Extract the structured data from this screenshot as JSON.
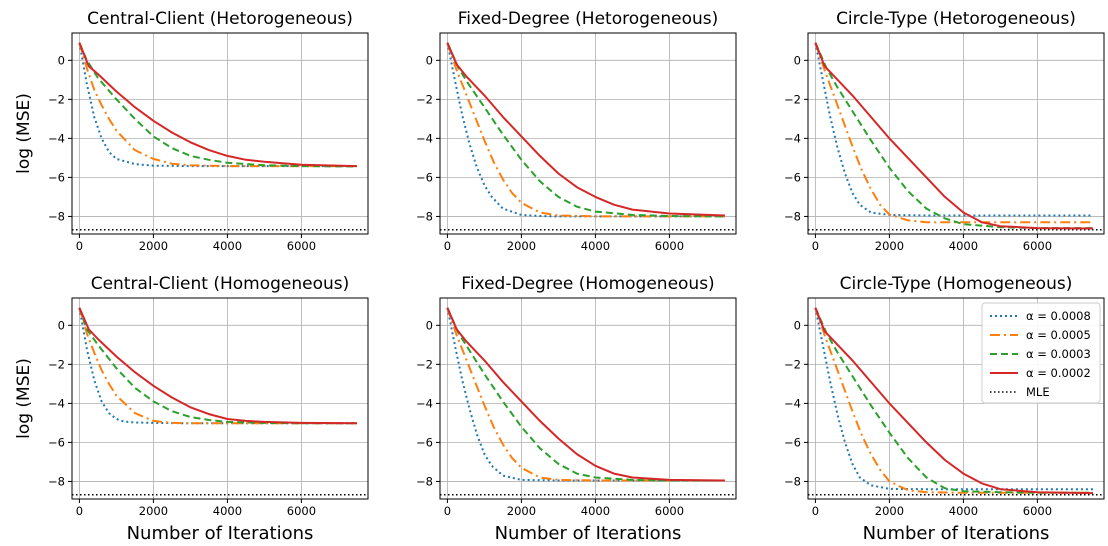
{
  "colors": {
    "series": [
      "#1f77b4",
      "#ff7f0e",
      "#2ca02c",
      "#d62728"
    ],
    "mle": "#000000",
    "grid": "#b0b0b0",
    "axis": "#000000"
  },
  "figure": {
    "ylabel": "log (MSE)",
    "xlabel": "Number of Iterations"
  },
  "legend": {
    "placement": "upper-right of bottom-right panel",
    "entries": [
      {
        "label": "α = 0.0008",
        "style": "dotted"
      },
      {
        "label": "α = 0.0005",
        "style": "dashdot"
      },
      {
        "label": "α = 0.0003",
        "style": "dashed"
      },
      {
        "label": "α = 0.0002",
        "style": "solid"
      },
      {
        "label": "MLE",
        "style": "dotted"
      }
    ]
  },
  "chart_data": [
    {
      "type": "line",
      "title": "Central-Client (Hetorogeneous)",
      "xlabel": "",
      "ylabel": "log (MSE)",
      "xlim": [
        -200,
        7800
      ],
      "ylim": [
        -8.9,
        1.4
      ],
      "xticks": [
        0,
        2000,
        4000,
        6000
      ],
      "yticks": [
        0,
        -2,
        -4,
        -6,
        -8
      ],
      "grid": true,
      "mle": -8.68,
      "series": [
        {
          "name": "α = 0.0008",
          "x": [
            0,
            200,
            400,
            600,
            800,
            1000,
            1500,
            2000,
            3000,
            4000,
            5000,
            6000,
            7500
          ],
          "y": [
            0.9,
            -1.2,
            -2.9,
            -4.0,
            -4.7,
            -5.05,
            -5.32,
            -5.4,
            -5.42,
            -5.42,
            -5.42,
            -5.42,
            -5.42
          ]
        },
        {
          "name": "α = 0.0005",
          "x": [
            0,
            200,
            400,
            600,
            800,
            1000,
            1500,
            2000,
            2500,
            3000,
            4000,
            5000,
            6000,
            7500
          ],
          "y": [
            0.9,
            -0.4,
            -1.5,
            -2.3,
            -3.0,
            -3.6,
            -4.6,
            -5.05,
            -5.3,
            -5.38,
            -5.42,
            -5.42,
            -5.42,
            -5.42
          ]
        },
        {
          "name": "α = 0.0003",
          "x": [
            0,
            200,
            500,
            1000,
            1500,
            2000,
            2500,
            3000,
            3500,
            4000,
            5000,
            6000,
            7500
          ],
          "y": [
            0.9,
            0.0,
            -0.9,
            -2.0,
            -3.0,
            -3.9,
            -4.5,
            -4.9,
            -5.1,
            -5.25,
            -5.38,
            -5.42,
            -5.44
          ]
        },
        {
          "name": "α = 0.0002",
          "x": [
            0,
            250,
            500,
            1000,
            1500,
            2000,
            2500,
            3000,
            3500,
            4000,
            4500,
            5000,
            6000,
            7500
          ],
          "y": [
            0.9,
            -0.3,
            -0.7,
            -1.6,
            -2.4,
            -3.1,
            -3.7,
            -4.2,
            -4.6,
            -4.9,
            -5.1,
            -5.2,
            -5.35,
            -5.42
          ]
        }
      ]
    },
    {
      "type": "line",
      "title": "Fixed-Degree (Hetorogeneous)",
      "xlabel": "",
      "ylabel": "",
      "xlim": [
        -200,
        7800
      ],
      "ylim": [
        -8.9,
        1.4
      ],
      "xticks": [
        0,
        2000,
        4000,
        6000
      ],
      "yticks": [
        0,
        -2,
        -4,
        -6,
        -8
      ],
      "grid": true,
      "mle": -8.68,
      "series": [
        {
          "name": "α = 0.0008",
          "x": [
            0,
            200,
            400,
            600,
            800,
            1000,
            1200,
            1500,
            2000,
            2500,
            3000,
            4000,
            5000,
            6000,
            7500
          ],
          "y": [
            0.9,
            -1.0,
            -2.8,
            -4.3,
            -5.5,
            -6.4,
            -7.0,
            -7.6,
            -7.92,
            -7.98,
            -8.0,
            -8.0,
            -8.0,
            -8.0,
            -8.0
          ]
        },
        {
          "name": "α = 0.0005",
          "x": [
            0,
            250,
            500,
            750,
            1000,
            1250,
            1500,
            1750,
            2000,
            2500,
            3000,
            4000,
            5000,
            6000,
            7500
          ],
          "y": [
            0.9,
            -0.5,
            -1.7,
            -2.9,
            -4.1,
            -5.2,
            -6.1,
            -6.8,
            -7.3,
            -7.8,
            -7.95,
            -8.0,
            -8.0,
            -8.0,
            -8.0
          ]
        },
        {
          "name": "α = 0.0003",
          "x": [
            0,
            300,
            600,
            1000,
            1500,
            2000,
            2500,
            3000,
            3500,
            4000,
            5000,
            6000,
            7500
          ],
          "y": [
            0.9,
            -0.4,
            -1.3,
            -2.4,
            -3.8,
            -5.1,
            -6.2,
            -7.0,
            -7.5,
            -7.75,
            -7.92,
            -7.98,
            -8.0
          ]
        },
        {
          "name": "α = 0.0002",
          "x": [
            0,
            250,
            500,
            1000,
            1500,
            2000,
            2500,
            3000,
            3500,
            4000,
            4500,
            5000,
            6000,
            7500
          ],
          "y": [
            0.9,
            -0.2,
            -0.8,
            -1.8,
            -2.9,
            -3.9,
            -4.9,
            -5.8,
            -6.5,
            -7.0,
            -7.4,
            -7.65,
            -7.85,
            -7.95
          ]
        }
      ]
    },
    {
      "type": "line",
      "title": "Circle-Type (Hetorogeneous)",
      "xlabel": "",
      "ylabel": "",
      "xlim": [
        -200,
        7800
      ],
      "ylim": [
        -8.9,
        1.4
      ],
      "xticks": [
        0,
        2000,
        4000,
        6000
      ],
      "yticks": [
        0,
        -2,
        -4,
        -6,
        -8
      ],
      "grid": true,
      "mle": -8.68,
      "series": [
        {
          "name": "α = 0.0008",
          "x": [
            0,
            200,
            400,
            600,
            800,
            1000,
            1200,
            1500,
            2000,
            3000,
            4000,
            5000,
            6000,
            7500
          ],
          "y": [
            0.9,
            -1.0,
            -2.9,
            -4.5,
            -5.8,
            -6.8,
            -7.4,
            -7.8,
            -7.92,
            -7.95,
            -7.95,
            -7.95,
            -7.95,
            -7.95
          ]
        },
        {
          "name": "α = 0.0005",
          "x": [
            0,
            250,
            500,
            750,
            1000,
            1250,
            1500,
            1750,
            2000,
            2500,
            3000,
            4000,
            5000,
            6000,
            7500
          ],
          "y": [
            0.9,
            -0.5,
            -1.8,
            -3.1,
            -4.4,
            -5.6,
            -6.6,
            -7.4,
            -7.9,
            -8.2,
            -8.3,
            -8.3,
            -8.3,
            -8.3,
            -8.3
          ]
        },
        {
          "name": "α = 0.0003",
          "x": [
            0,
            300,
            600,
            1000,
            1500,
            2000,
            2500,
            3000,
            3500,
            4000,
            5000,
            6000,
            7500
          ],
          "y": [
            0.9,
            -0.4,
            -1.4,
            -2.6,
            -4.1,
            -5.5,
            -6.7,
            -7.6,
            -8.1,
            -8.4,
            -8.55,
            -8.6,
            -8.6
          ]
        },
        {
          "name": "α = 0.0002",
          "x": [
            0,
            250,
            500,
            1000,
            1500,
            2000,
            2500,
            3000,
            3500,
            4000,
            4500,
            5000,
            6000,
            7500
          ],
          "y": [
            0.9,
            -0.3,
            -0.8,
            -1.8,
            -2.9,
            -4.0,
            -5.0,
            -6.0,
            -7.0,
            -7.8,
            -8.3,
            -8.5,
            -8.6,
            -8.62
          ]
        }
      ]
    },
    {
      "type": "line",
      "title": "Central-Client (Homogeneous)",
      "xlabel": "Number of Iterations",
      "ylabel": "log (MSE)",
      "xlim": [
        -200,
        7800
      ],
      "ylim": [
        -8.9,
        1.4
      ],
      "xticks": [
        0,
        2000,
        4000,
        6000
      ],
      "yticks": [
        0,
        -2,
        -4,
        -6,
        -8
      ],
      "grid": true,
      "mle": -8.68,
      "series": [
        {
          "name": "α = 0.0008",
          "x": [
            0,
            200,
            400,
            600,
            800,
            1000,
            1200,
            1500,
            2000,
            3000,
            4000,
            5000,
            6000,
            7500
          ],
          "y": [
            0.9,
            -1.2,
            -2.8,
            -3.9,
            -4.5,
            -4.8,
            -4.93,
            -4.98,
            -5.0,
            -5.02,
            -5.02,
            -5.02,
            -5.02,
            -5.02
          ]
        },
        {
          "name": "α = 0.0005",
          "x": [
            0,
            200,
            400,
            600,
            800,
            1000,
            1500,
            2000,
            2500,
            3000,
            4000,
            5000,
            6000,
            7500
          ],
          "y": [
            0.9,
            -0.4,
            -1.4,
            -2.3,
            -3.0,
            -3.6,
            -4.5,
            -4.9,
            -5.0,
            -5.02,
            -5.02,
            -5.02,
            -5.02,
            -5.02
          ]
        },
        {
          "name": "α = 0.0003",
          "x": [
            0,
            200,
            500,
            1000,
            1500,
            2000,
            2500,
            3000,
            3500,
            4000,
            5000,
            6000,
            7500
          ],
          "y": [
            0.9,
            -0.2,
            -1.0,
            -2.2,
            -3.2,
            -3.9,
            -4.4,
            -4.7,
            -4.85,
            -4.95,
            -5.0,
            -5.02,
            -5.02
          ]
        },
        {
          "name": "α = 0.0002",
          "x": [
            0,
            250,
            500,
            1000,
            1500,
            2000,
            2500,
            3000,
            3500,
            4000,
            4500,
            5000,
            6000,
            7500
          ],
          "y": [
            0.9,
            -0.2,
            -0.7,
            -1.6,
            -2.4,
            -3.1,
            -3.7,
            -4.2,
            -4.55,
            -4.8,
            -4.9,
            -4.95,
            -5.0,
            -5.02
          ]
        }
      ]
    },
    {
      "type": "line",
      "title": "Fixed-Degree (Homogeneous)",
      "xlabel": "Number of Iterations",
      "ylabel": "",
      "xlim": [
        -200,
        7800
      ],
      "ylim": [
        -8.9,
        1.4
      ],
      "xticks": [
        0,
        2000,
        4000,
        6000
      ],
      "yticks": [
        0,
        -2,
        -4,
        -6,
        -8
      ],
      "grid": true,
      "mle": -8.68,
      "series": [
        {
          "name": "α = 0.0008",
          "x": [
            0,
            200,
            400,
            600,
            800,
            1000,
            1200,
            1500,
            2000,
            3000,
            4000,
            5000,
            6000,
            7500
          ],
          "y": [
            0.9,
            -1.0,
            -2.8,
            -4.3,
            -5.6,
            -6.6,
            -7.2,
            -7.7,
            -7.92,
            -7.95,
            -7.95,
            -7.95,
            -7.95,
            -7.95
          ]
        },
        {
          "name": "α = 0.0005",
          "x": [
            0,
            250,
            500,
            750,
            1000,
            1250,
            1500,
            1750,
            2000,
            2500,
            3000,
            4000,
            5000,
            6000,
            7500
          ],
          "y": [
            0.9,
            -0.5,
            -1.7,
            -2.9,
            -4.1,
            -5.2,
            -6.1,
            -6.8,
            -7.3,
            -7.8,
            -7.92,
            -7.95,
            -7.95,
            -7.95,
            -7.95
          ]
        },
        {
          "name": "α = 0.0003",
          "x": [
            0,
            300,
            600,
            1000,
            1500,
            2000,
            2500,
            3000,
            3500,
            4000,
            5000,
            6000,
            7500
          ],
          "y": [
            0.9,
            -0.4,
            -1.3,
            -2.5,
            -3.9,
            -5.2,
            -6.3,
            -7.1,
            -7.6,
            -7.8,
            -7.92,
            -7.95,
            -7.95
          ]
        },
        {
          "name": "α = 0.0002",
          "x": [
            0,
            250,
            500,
            1000,
            1500,
            2000,
            2500,
            3000,
            3500,
            4000,
            4500,
            5000,
            6000,
            7500
          ],
          "y": [
            0.9,
            -0.2,
            -0.8,
            -1.8,
            -2.9,
            -3.9,
            -4.9,
            -5.8,
            -6.6,
            -7.2,
            -7.6,
            -7.8,
            -7.92,
            -7.95
          ]
        }
      ]
    },
    {
      "type": "line",
      "title": "Circle-Type (Homogeneous)",
      "xlabel": "Number of Iterations",
      "ylabel": "",
      "xlim": [
        -200,
        7800
      ],
      "ylim": [
        -8.9,
        1.4
      ],
      "xticks": [
        0,
        2000,
        4000,
        6000
      ],
      "yticks": [
        0,
        -2,
        -4,
        -6,
        -8
      ],
      "grid": true,
      "mle": -8.68,
      "series": [
        {
          "name": "α = 0.0008",
          "x": [
            0,
            200,
            400,
            600,
            800,
            1000,
            1200,
            1500,
            2000,
            3000,
            4000,
            5000,
            6000,
            7500
          ],
          "y": [
            0.9,
            -1.0,
            -2.9,
            -4.6,
            -6.0,
            -7.1,
            -7.8,
            -8.2,
            -8.38,
            -8.4,
            -8.4,
            -8.4,
            -8.4,
            -8.4
          ]
        },
        {
          "name": "α = 0.0005",
          "x": [
            0,
            250,
            500,
            750,
            1000,
            1250,
            1500,
            1750,
            2000,
            2500,
            3000,
            4000,
            5000,
            6000,
            7500
          ],
          "y": [
            0.9,
            -0.5,
            -1.8,
            -3.1,
            -4.4,
            -5.6,
            -6.6,
            -7.4,
            -8.0,
            -8.45,
            -8.55,
            -8.58,
            -8.58,
            -8.58,
            -8.58
          ]
        },
        {
          "name": "α = 0.0003",
          "x": [
            0,
            300,
            600,
            1000,
            1500,
            2000,
            2500,
            3000,
            3500,
            4000,
            5000,
            6000,
            7500
          ],
          "y": [
            0.9,
            -0.4,
            -1.4,
            -2.6,
            -4.1,
            -5.5,
            -6.8,
            -7.8,
            -8.35,
            -8.5,
            -8.55,
            -8.58,
            -8.58
          ]
        },
        {
          "name": "α = 0.0002",
          "x": [
            0,
            250,
            500,
            1000,
            1500,
            2000,
            2500,
            3000,
            3500,
            4000,
            4500,
            5000,
            6000,
            7500
          ],
          "y": [
            0.9,
            -0.3,
            -0.8,
            -1.8,
            -2.9,
            -4.0,
            -5.0,
            -6.0,
            -6.9,
            -7.6,
            -8.1,
            -8.4,
            -8.55,
            -8.6
          ]
        }
      ]
    }
  ]
}
